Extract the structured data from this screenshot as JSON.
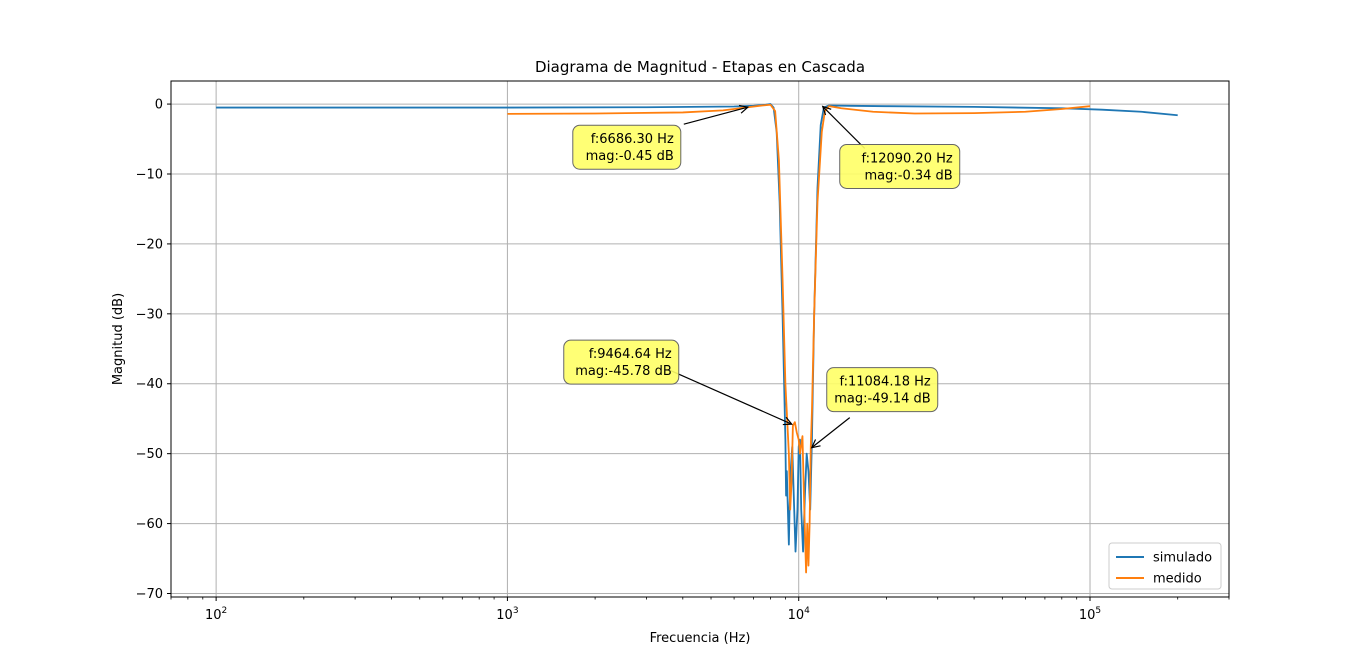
{
  "chart_data": {
    "type": "line",
    "title": "Diagrama de Magnitud - Etapas en Cascada",
    "xlabel": "Frecuencia (Hz)",
    "ylabel": "Magnitud (dB)",
    "xscale": "log",
    "xlim": [
      70,
      300000
    ],
    "ylim": [
      -70.5,
      3.3
    ],
    "grid": true,
    "legend_position": "lower-right",
    "y_ticks": [
      0,
      -10,
      -20,
      -30,
      -40,
      -50,
      -60,
      -70
    ],
    "y_tick_labels": [
      "0",
      "−10",
      "−20",
      "−30",
      "−40",
      "−50",
      "−60",
      "−70"
    ],
    "x_ticks": [
      {
        "value": 100,
        "base": "10",
        "exp": "2"
      },
      {
        "value": 1000,
        "base": "10",
        "exp": "3"
      },
      {
        "value": 10000,
        "base": "10",
        "exp": "4"
      },
      {
        "value": 100000,
        "base": "10",
        "exp": "5"
      }
    ],
    "series": [
      {
        "name": "simulado",
        "color": "#1f77b4",
        "points": [
          [
            100,
            -0.5
          ],
          [
            1000,
            -0.5
          ],
          [
            3000,
            -0.45
          ],
          [
            6000,
            -0.35
          ],
          [
            7000,
            -0.25
          ],
          [
            7700,
            -0.1
          ],
          [
            8000,
            0
          ],
          [
            8200,
            -0.5
          ],
          [
            8400,
            -4
          ],
          [
            8600,
            -14
          ],
          [
            8800,
            -30
          ],
          [
            9000,
            -48
          ],
          [
            9050,
            -56
          ],
          [
            9100,
            -52.5
          ],
          [
            9150,
            -56
          ],
          [
            9250,
            -63
          ],
          [
            9300,
            -58
          ],
          [
            9400,
            -52
          ],
          [
            9500,
            -49
          ],
          [
            9600,
            -55
          ],
          [
            9750,
            -64
          ],
          [
            9900,
            -58
          ],
          [
            10000,
            -49
          ],
          [
            10100,
            -48
          ],
          [
            10200,
            -58
          ],
          [
            10350,
            -64
          ],
          [
            10500,
            -56
          ],
          [
            10650,
            -50
          ],
          [
            10800,
            -52.5
          ],
          [
            10950,
            -58
          ],
          [
            11100,
            -48
          ],
          [
            11300,
            -30
          ],
          [
            11600,
            -12
          ],
          [
            11900,
            -3
          ],
          [
            12200,
            -0.5
          ],
          [
            12700,
            -0.2
          ],
          [
            15000,
            -0.25
          ],
          [
            20000,
            -0.3
          ],
          [
            40000,
            -0.4
          ],
          [
            80000,
            -0.6
          ],
          [
            110000,
            -0.8
          ],
          [
            150000,
            -1.1
          ],
          [
            200000,
            -1.6
          ]
        ]
      },
      {
        "name": "medido",
        "color": "#ff7f0e",
        "points": [
          [
            1000,
            -1.4
          ],
          [
            2000,
            -1.35
          ],
          [
            4000,
            -1.2
          ],
          [
            5500,
            -0.9
          ],
          [
            6700,
            -0.45
          ],
          [
            7500,
            -0.2
          ],
          [
            8000,
            -0.1
          ],
          [
            8300,
            -1
          ],
          [
            8550,
            -8
          ],
          [
            8800,
            -25
          ],
          [
            9000,
            -40
          ],
          [
            9250,
            -50
          ],
          [
            9350,
            -58
          ],
          [
            9450,
            -54
          ],
          [
            9550,
            -46
          ],
          [
            9700,
            -45.5
          ],
          [
            9850,
            -47
          ],
          [
            10000,
            -48
          ],
          [
            10100,
            -50
          ],
          [
            10300,
            -47.5
          ],
          [
            10450,
            -58
          ],
          [
            10600,
            -67
          ],
          [
            10700,
            -60
          ],
          [
            10800,
            -66
          ],
          [
            10900,
            -60
          ],
          [
            11000,
            -49
          ],
          [
            11100,
            -44
          ],
          [
            11300,
            -30
          ],
          [
            11600,
            -14
          ],
          [
            12000,
            -4
          ],
          [
            12300,
            -1
          ],
          [
            12700,
            -0.3
          ],
          [
            14000,
            -0.6
          ],
          [
            18000,
            -1.1
          ],
          [
            25000,
            -1.35
          ],
          [
            40000,
            -1.3
          ],
          [
            60000,
            -1.1
          ],
          [
            80000,
            -0.7
          ],
          [
            100000,
            -0.3
          ]
        ]
      }
    ],
    "annotations": [
      {
        "line1": "f:6686.30 Hz",
        "line2": "mag:-0.45 dB",
        "x": 6686.3,
        "y": -0.45
      },
      {
        "line1": "f:12090.20 Hz",
        "line2": "mag:-0.34 dB",
        "x": 12090.2,
        "y": -0.34
      },
      {
        "line1": "f:9464.64 Hz",
        "line2": "mag:-45.78 dB",
        "x": 9464.64,
        "y": -45.78
      },
      {
        "line1": "f:11084.18 Hz",
        "line2": "mag:-49.14 dB",
        "x": 11084.18,
        "y": -49.14
      }
    ]
  }
}
